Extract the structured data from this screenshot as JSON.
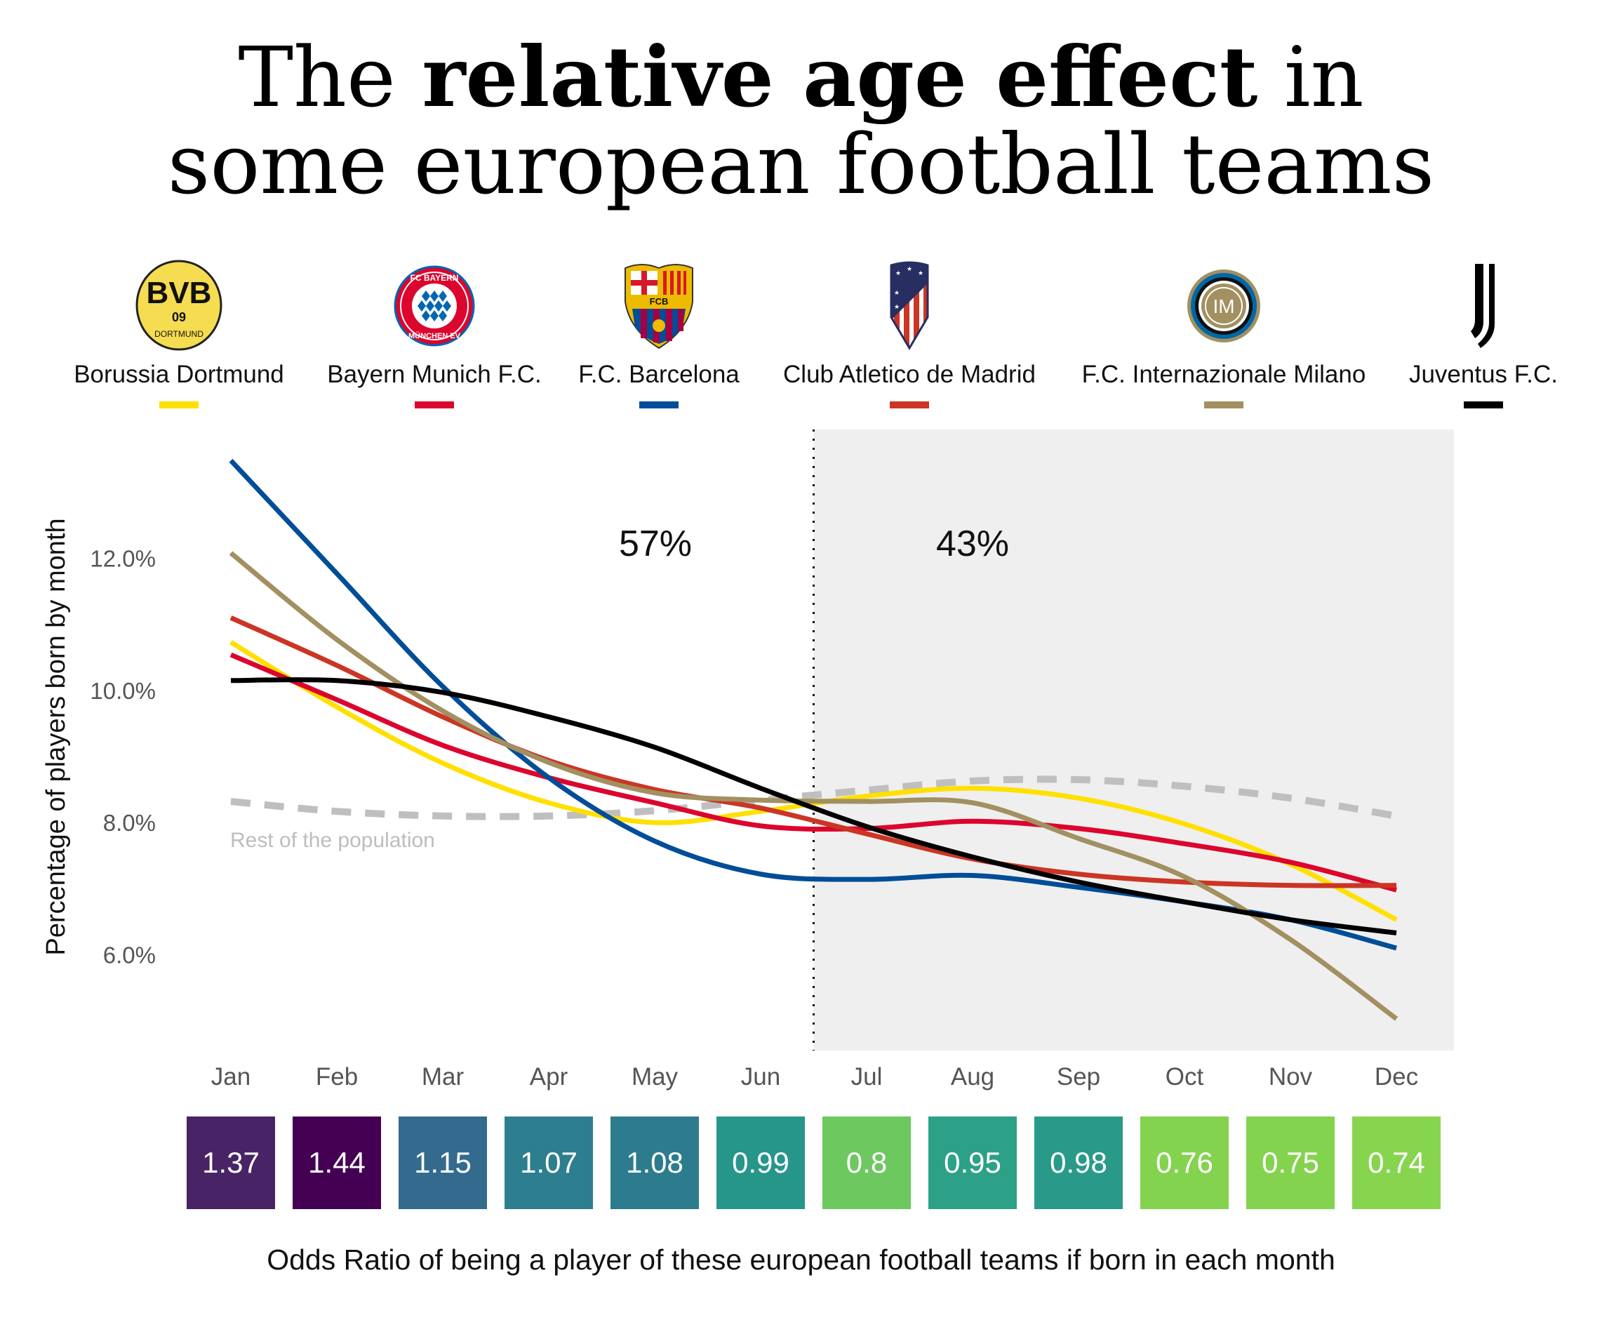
{
  "title": {
    "line1_pre": "The ",
    "line1_bold": "relative age effect",
    "line1_post": " in",
    "line2": "some european football teams"
  },
  "teams": [
    {
      "name": "Borussia Dortmund",
      "color": "#FFE000",
      "logo": "bvb-crest-icon"
    },
    {
      "name": "Bayern Munich F.C.",
      "color": "#DC052D",
      "logo": "fc-bayern-crest-icon"
    },
    {
      "name": "F.C. Barcelona",
      "color": "#004D98",
      "logo": "fcb-crest-icon"
    },
    {
      "name": "Club Atletico de Madrid",
      "color": "#CB3524",
      "logo": "atletico-crest-icon"
    },
    {
      "name": "F.C. Internazionale Milano",
      "color": "#A29061",
      "logo": "inter-crest-icon"
    },
    {
      "name": "Juventus F.C.",
      "color": "#000000",
      "logo": "juventus-crest-icon"
    }
  ],
  "chart_data": {
    "type": "line",
    "title": "The relative age effect in some european football teams",
    "xlabel": "",
    "ylabel": "Percentage of players born by month",
    "categories": [
      "Jan",
      "Feb",
      "Mar",
      "Apr",
      "May",
      "Jun",
      "Jul",
      "Aug",
      "Sep",
      "Oct",
      "Nov",
      "Dec"
    ],
    "yticks": [
      6.0,
      8.0,
      10.0,
      12.0
    ],
    "ytick_labels": [
      "6.0%",
      "8.0%",
      "10.0%",
      "12.0%"
    ],
    "ylim": [
      4.55,
      13.95
    ],
    "grid": false,
    "legend": "top",
    "series": [
      {
        "name": "Borussia Dortmund",
        "color": "#FFE000",
        "values": [
          10.73,
          9.75,
          8.9,
          8.3,
          8.0,
          8.17,
          8.4,
          8.52,
          8.37,
          7.98,
          7.37,
          6.53
        ]
      },
      {
        "name": "Bayern Munich F.C.",
        "color": "#DC052D",
        "values": [
          10.54,
          9.86,
          9.17,
          8.68,
          8.3,
          7.95,
          7.91,
          8.02,
          7.91,
          7.68,
          7.4,
          6.98
        ]
      },
      {
        "name": "F.C. Barcelona",
        "color": "#004D98",
        "values": [
          13.48,
          11.77,
          10.06,
          8.68,
          7.72,
          7.22,
          7.14,
          7.2,
          7.02,
          6.8,
          6.53,
          6.1
        ]
      },
      {
        "name": "Club Atletico de Madrid",
        "color": "#CB3524",
        "values": [
          11.1,
          10.38,
          9.6,
          8.94,
          8.5,
          8.22,
          7.83,
          7.45,
          7.22,
          7.1,
          7.05,
          7.05
        ]
      },
      {
        "name": "F.C. Internazionale Milano",
        "color": "#A29061",
        "values": [
          12.08,
          10.77,
          9.69,
          8.91,
          8.45,
          8.34,
          8.32,
          8.3,
          7.76,
          7.18,
          6.23,
          5.03
        ]
      },
      {
        "name": "Juventus F.C.",
        "color": "#000000",
        "values": [
          10.15,
          10.15,
          9.97,
          9.6,
          9.14,
          8.52,
          7.94,
          7.48,
          7.1,
          6.8,
          6.53,
          6.33
        ]
      },
      {
        "name": "Rest of the population",
        "color": "#BFBFBF",
        "dashed": true,
        "values": [
          8.32,
          8.17,
          8.1,
          8.1,
          8.18,
          8.34,
          8.49,
          8.63,
          8.65,
          8.55,
          8.37,
          8.1
        ]
      }
    ],
    "annotations": [
      {
        "text": "57%",
        "region": "Jan-Jun"
      },
      {
        "text": "43%",
        "region": "Jul-Dec (shaded)"
      },
      {
        "text": "Rest of the population",
        "series": "Rest of the population"
      }
    ],
    "shaded_region": {
      "from": "Jun/Jul boundary",
      "to": "Dec",
      "color": "#EFEFEF",
      "divider": "dotted"
    },
    "odds_ratio": {
      "caption": "Odds Ratio of being a player of these european football teams if born in each month",
      "values": [
        1.37,
        1.44,
        1.15,
        1.07,
        1.08,
        0.99,
        0.8,
        0.95,
        0.98,
        0.76,
        0.75,
        0.74
      ],
      "labels": [
        "1.37",
        "1.44",
        "1.15",
        "1.07",
        "1.08",
        "0.99",
        "0.8",
        "0.95",
        "0.98",
        "0.76",
        "0.75",
        "0.74"
      ],
      "colors": [
        "#482366",
        "#440154",
        "#336A8E",
        "#2D7E8E",
        "#2D7C8E",
        "#27968A",
        "#6DC85F",
        "#2DA187",
        "#299A89",
        "#84D34F",
        "#84D34F",
        "#87D54F"
      ]
    }
  }
}
